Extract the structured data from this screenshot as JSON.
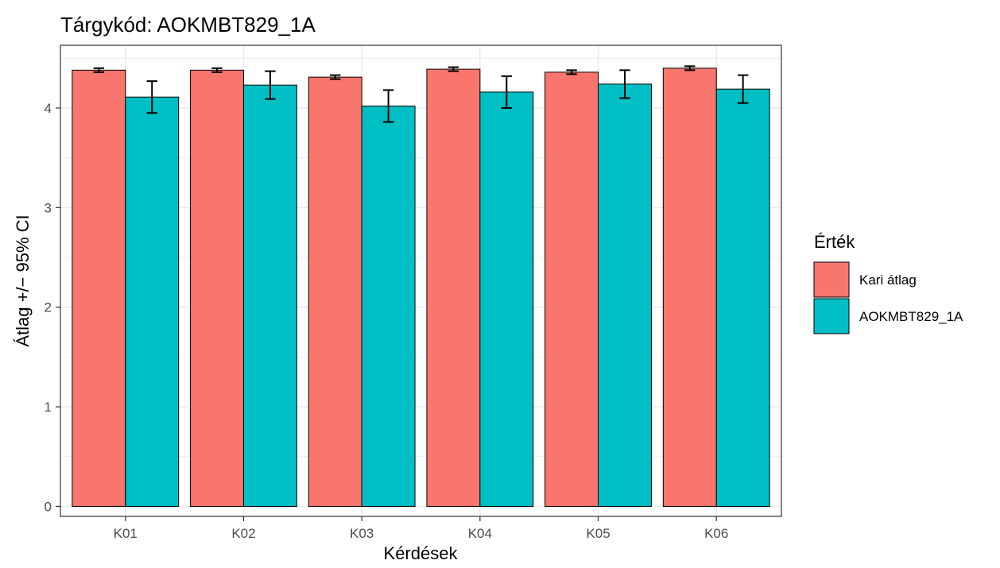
{
  "chart_data": {
    "type": "bar",
    "title": "Tárgykód:  AOKMBT829_1A",
    "xlabel": "Kérdések",
    "ylabel": "Átlag +/− 95% CI",
    "categories": [
      "K01",
      "K02",
      "K03",
      "K04",
      "K05",
      "K06"
    ],
    "ylim": [
      -0.1,
      4.63
    ],
    "yticks": [
      0,
      1,
      2,
      3,
      4
    ],
    "grid": true,
    "legend": {
      "title": "Érték",
      "position": "right"
    },
    "series": [
      {
        "name": "Kari átlag",
        "color": "#F8766D",
        "values": [
          4.38,
          4.38,
          4.31,
          4.39,
          4.36,
          4.4
        ],
        "ci_low": [
          4.36,
          4.36,
          4.29,
          4.37,
          4.34,
          4.38
        ],
        "ci_high": [
          4.4,
          4.4,
          4.33,
          4.41,
          4.38,
          4.42
        ]
      },
      {
        "name": "AOKMBT829_1A",
        "color": "#00BFC4",
        "values": [
          4.11,
          4.23,
          4.02,
          4.16,
          4.24,
          4.19
        ],
        "ci_low": [
          3.95,
          4.09,
          3.86,
          4.0,
          4.1,
          4.05
        ],
        "ci_high": [
          4.27,
          4.37,
          4.18,
          4.32,
          4.38,
          4.33
        ]
      }
    ]
  }
}
